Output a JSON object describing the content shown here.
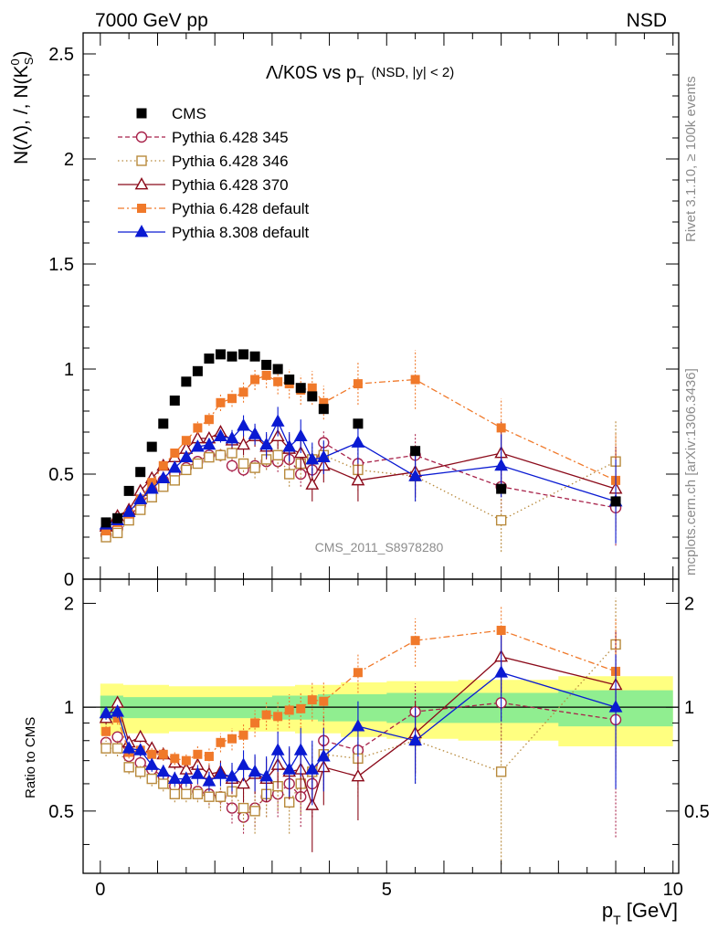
{
  "header": {
    "left": "7000 GeV pp",
    "right": "NSD"
  },
  "side_labels": {
    "rivet": "Rivet 3.1.10, ≥ 100k events",
    "mcplots": "mcplots.cern.ch [arXiv:1306.3436]"
  },
  "chart_data": {
    "type": "scatter",
    "title_parts": {
      "main": "Λ/K0S vs p",
      "sub": "T",
      "tail": "(NSD, |y| < 2)"
    },
    "ylabel_parts": {
      "a": "N(Λ), /, N(K",
      "sup": "0",
      "sub": "S",
      "b": ")"
    },
    "xlabel_parts": {
      "main": "p",
      "sub": "T",
      "tail": " [GeV]"
    },
    "ratio_ylabel": "Ratio to CMS",
    "analysis_tag": "CMS_2011_S8978280",
    "xlim": [
      -0.3,
      10.1
    ],
    "ylim": [
      0,
      2.6
    ],
    "ratio_ylim": [
      0.33,
      2.35
    ],
    "x_ticks": [
      {
        "v": 0,
        "label": "0"
      },
      {
        "v": 5,
        "label": "5"
      },
      {
        "v": 10,
        "label": "10"
      }
    ],
    "y_ticks": [
      {
        "v": 0,
        "label": "0"
      },
      {
        "v": 0.5,
        "label": "0.5"
      },
      {
        "v": 1,
        "label": "1"
      },
      {
        "v": 1.5,
        "label": "1.5"
      },
      {
        "v": 2,
        "label": "2"
      },
      {
        "v": 2.5,
        "label": "2.5"
      }
    ],
    "ratio_ticks": [
      {
        "v": 0.5,
        "label": "0.5"
      },
      {
        "v": 1,
        "label": "1"
      },
      {
        "v": 2,
        "label": "2"
      }
    ],
    "x": [
      0.1,
      0.3,
      0.5,
      0.7,
      0.9,
      1.1,
      1.3,
      1.5,
      1.7,
      1.9,
      2.1,
      2.3,
      2.5,
      2.7,
      2.9,
      3.1,
      3.3,
      3.5,
      3.7,
      3.9,
      4.5,
      5.5,
      7.0,
      9.0
    ],
    "cms": {
      "name": "CMS",
      "color": "#000000",
      "values": [
        0.27,
        0.29,
        0.42,
        0.51,
        0.63,
        0.74,
        0.85,
        0.94,
        0.99,
        1.05,
        1.07,
        1.06,
        1.07,
        1.06,
        1.02,
        1.0,
        0.95,
        0.91,
        0.87,
        0.81,
        0.74,
        0.61,
        0.43,
        0.37
      ],
      "band_total": [
        0.17,
        0.17,
        0.16,
        0.16,
        0.16,
        0.16,
        0.15,
        0.15,
        0.15,
        0.15,
        0.15,
        0.15,
        0.15,
        0.15,
        0.15,
        0.15,
        0.15,
        0.16,
        0.16,
        0.16,
        0.18,
        0.19,
        0.2,
        0.23
      ],
      "band_stat": [
        0.08,
        0.08,
        0.07,
        0.07,
        0.07,
        0.07,
        0.07,
        0.07,
        0.07,
        0.07,
        0.07,
        0.07,
        0.07,
        0.07,
        0.07,
        0.08,
        0.08,
        0.08,
        0.08,
        0.09,
        0.09,
        0.1,
        0.1,
        0.12
      ]
    },
    "series": [
      {
        "name": "Pythia 6.428 345",
        "color": "#a8224a",
        "marker": "circle-open",
        "dash": "5,3",
        "values": [
          0.21,
          0.24,
          0.3,
          0.35,
          0.42,
          0.47,
          0.5,
          0.53,
          0.56,
          0.59,
          0.59,
          0.54,
          0.52,
          0.54,
          0.56,
          0.56,
          0.57,
          0.5,
          0.52,
          0.65,
          0.55,
          0.59,
          0.44,
          0.34
        ],
        "errors": [
          0.01,
          0.01,
          0.01,
          0.01,
          0.01,
          0.01,
          0.01,
          0.01,
          0.02,
          0.02,
          0.02,
          0.03,
          0.03,
          0.04,
          0.04,
          0.05,
          0.05,
          0.06,
          0.06,
          0.06,
          0.08,
          0.1,
          0.12,
          0.18
        ]
      },
      {
        "name": "Pythia 6.428 346",
        "color": "#b88a3c",
        "marker": "square-open",
        "dash": "1.5,3",
        "values": [
          0.2,
          0.22,
          0.28,
          0.33,
          0.39,
          0.44,
          0.47,
          0.52,
          0.55,
          0.58,
          0.59,
          0.6,
          0.55,
          0.53,
          0.57,
          0.59,
          0.5,
          0.55,
          0.57,
          0.59,
          0.52,
          0.49,
          0.28,
          0.56
        ],
        "errors": [
          0.01,
          0.01,
          0.01,
          0.01,
          0.01,
          0.01,
          0.01,
          0.01,
          0.02,
          0.02,
          0.03,
          0.03,
          0.04,
          0.05,
          0.05,
          0.06,
          0.06,
          0.07,
          0.07,
          0.07,
          0.1,
          0.12,
          0.15,
          0.2
        ]
      },
      {
        "name": "Pythia 6.428 370",
        "color": "#8b0a1a",
        "marker": "triangle-open",
        "dash": "",
        "values": [
          0.25,
          0.3,
          0.33,
          0.42,
          0.48,
          0.54,
          0.58,
          0.62,
          0.67,
          0.67,
          0.7,
          0.66,
          0.64,
          0.68,
          0.63,
          0.68,
          0.62,
          0.6,
          0.45,
          0.54,
          0.47,
          0.51,
          0.6,
          0.43
        ],
        "errors": [
          0.01,
          0.01,
          0.01,
          0.01,
          0.01,
          0.01,
          0.02,
          0.02,
          0.02,
          0.03,
          0.03,
          0.04,
          0.05,
          0.05,
          0.06,
          0.06,
          0.07,
          0.08,
          0.08,
          0.08,
          0.1,
          0.12,
          0.15,
          0.2
        ]
      },
      {
        "name": "Pythia 6.428 default",
        "color": "#f0792a",
        "marker": "square-filled",
        "dash": "7,3,2,3",
        "values": [
          0.23,
          0.27,
          0.31,
          0.38,
          0.46,
          0.54,
          0.6,
          0.66,
          0.72,
          0.76,
          0.84,
          0.86,
          0.89,
          0.95,
          0.97,
          0.94,
          0.93,
          0.9,
          0.91,
          0.84,
          0.93,
          0.95,
          0.72,
          0.47
        ],
        "errors": [
          0.01,
          0.01,
          0.01,
          0.01,
          0.01,
          0.02,
          0.02,
          0.02,
          0.03,
          0.03,
          0.04,
          0.04,
          0.05,
          0.05,
          0.06,
          0.06,
          0.07,
          0.07,
          0.08,
          0.08,
          0.1,
          0.14,
          0.14,
          0.22
        ]
      },
      {
        "name": "Pythia 8.308 default",
        "color": "#0a1ad2",
        "marker": "triangle-filled",
        "dash": "",
        "values": [
          0.26,
          0.28,
          0.32,
          0.38,
          0.43,
          0.48,
          0.53,
          0.58,
          0.63,
          0.64,
          0.68,
          0.67,
          0.73,
          0.69,
          0.64,
          0.75,
          0.63,
          0.68,
          0.57,
          0.58,
          0.65,
          0.49,
          0.54,
          0.37
        ],
        "errors": [
          0.01,
          0.01,
          0.01,
          0.01,
          0.01,
          0.01,
          0.02,
          0.02,
          0.02,
          0.03,
          0.03,
          0.04,
          0.05,
          0.05,
          0.06,
          0.07,
          0.07,
          0.08,
          0.08,
          0.08,
          0.1,
          0.12,
          0.15,
          0.2
        ]
      }
    ],
    "ratios": [
      [
        0.79,
        0.82,
        0.72,
        0.69,
        0.66,
        0.63,
        0.59,
        0.59,
        0.57,
        0.56,
        0.55,
        0.51,
        0.48,
        0.51,
        0.55,
        0.56,
        0.6,
        0.55,
        0.6,
        0.8,
        0.75,
        0.97,
        1.03,
        0.92
      ],
      [
        0.76,
        0.76,
        0.67,
        0.65,
        0.62,
        0.6,
        0.56,
        0.56,
        0.56,
        0.55,
        0.55,
        0.57,
        0.51,
        0.5,
        0.56,
        0.59,
        0.53,
        0.6,
        0.65,
        0.73,
        0.71,
        0.8,
        0.65,
        1.52
      ],
      [
        0.93,
        1.03,
        0.79,
        0.82,
        0.76,
        0.73,
        0.69,
        0.66,
        0.68,
        0.64,
        0.65,
        0.62,
        0.6,
        0.64,
        0.62,
        0.68,
        0.65,
        0.66,
        0.52,
        0.67,
        0.63,
        0.84,
        1.4,
        1.16
      ],
      [
        0.85,
        0.93,
        0.74,
        0.75,
        0.73,
        0.73,
        0.71,
        0.7,
        0.73,
        0.72,
        0.79,
        0.81,
        0.83,
        0.9,
        0.95,
        0.94,
        0.98,
        0.99,
        1.05,
        1.04,
        1.26,
        1.56,
        1.67,
        1.27
      ],
      [
        0.96,
        0.97,
        0.76,
        0.75,
        0.68,
        0.65,
        0.62,
        0.62,
        0.64,
        0.61,
        0.64,
        0.63,
        0.68,
        0.65,
        0.63,
        0.75,
        0.66,
        0.75,
        0.66,
        0.72,
        0.88,
        0.8,
        1.26,
        1.0
      ]
    ],
    "ratio_errors": [
      [
        0.04,
        0.04,
        0.03,
        0.03,
        0.03,
        0.03,
        0.03,
        0.03,
        0.03,
        0.04,
        0.04,
        0.05,
        0.05,
        0.06,
        0.07,
        0.08,
        0.09,
        0.1,
        0.12,
        0.14,
        0.15,
        0.2,
        0.3,
        0.5
      ],
      [
        0.04,
        0.04,
        0.03,
        0.03,
        0.03,
        0.03,
        0.03,
        0.03,
        0.03,
        0.04,
        0.05,
        0.05,
        0.06,
        0.07,
        0.08,
        0.09,
        0.1,
        0.11,
        0.13,
        0.15,
        0.16,
        0.2,
        0.3,
        0.55
      ],
      [
        0.04,
        0.04,
        0.03,
        0.03,
        0.03,
        0.03,
        0.03,
        0.03,
        0.04,
        0.04,
        0.05,
        0.06,
        0.07,
        0.08,
        0.09,
        0.1,
        0.11,
        0.12,
        0.14,
        0.15,
        0.16,
        0.2,
        0.3,
        0.5
      ],
      [
        0.04,
        0.04,
        0.03,
        0.03,
        0.03,
        0.03,
        0.03,
        0.03,
        0.04,
        0.04,
        0.05,
        0.06,
        0.07,
        0.08,
        0.09,
        0.1,
        0.11,
        0.12,
        0.14,
        0.15,
        0.16,
        0.25,
        0.3,
        0.55
      ],
      [
        0.04,
        0.04,
        0.03,
        0.03,
        0.03,
        0.03,
        0.03,
        0.03,
        0.04,
        0.04,
        0.05,
        0.06,
        0.07,
        0.08,
        0.09,
        0.1,
        0.11,
        0.12,
        0.14,
        0.15,
        0.16,
        0.2,
        0.35,
        0.42
      ]
    ]
  }
}
